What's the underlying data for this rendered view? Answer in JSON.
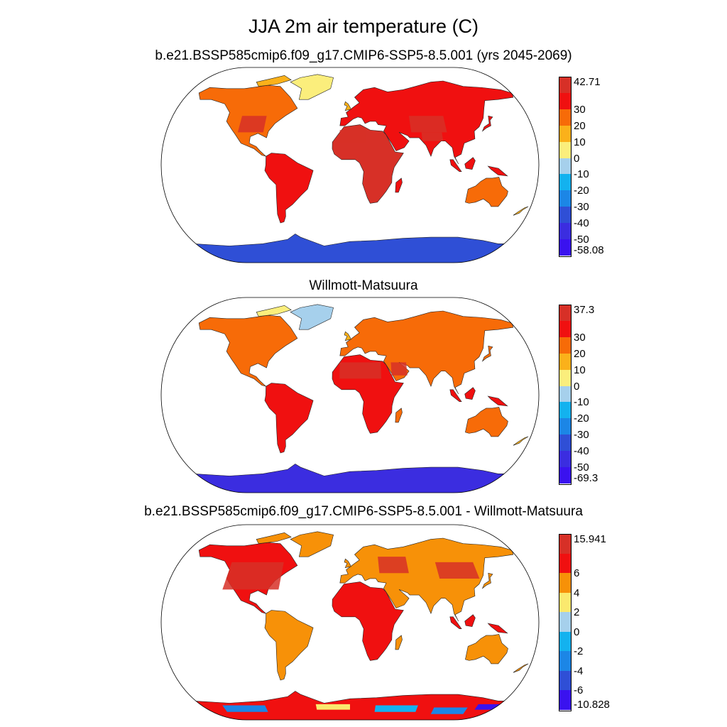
{
  "main_title": "JJA 2m air temperature (C)",
  "panels": [
    {
      "title": "b.e21.BSSP585cmip6.f09_g17.CMIP6-SSP5-8.5.001 (yrs 2045-2069)",
      "colorbar_labels": [
        "42.71",
        "30",
        "20",
        "10",
        "0",
        "-10",
        "-20",
        "-30",
        "-40",
        "-50",
        "-58.08"
      ],
      "colors": [
        "#d73027",
        "#f01010",
        "#f76b08",
        "#fbb11a",
        "#fbee7c",
        "#a6d0ec",
        "#13b2ef",
        "#1c86e6",
        "#2f4fd6",
        "#3b2de0",
        "#3a12ef"
      ]
    },
    {
      "title": "Willmott-Matsuura",
      "colorbar_labels": [
        "37.3",
        "30",
        "20",
        "10",
        "0",
        "-10",
        "-20",
        "-30",
        "-40",
        "-50",
        "-69.3"
      ],
      "colors": [
        "#d73027",
        "#f01010",
        "#f76b08",
        "#fbb11a",
        "#fbee7c",
        "#a6d0ec",
        "#13b2ef",
        "#1c86e6",
        "#2f4fd6",
        "#3b2de0",
        "#3a12ef"
      ]
    },
    {
      "title": "b.e21.BSSP585cmip6.f09_g17.CMIP6-SSP5-8.5.001 - Willmott-Matsuura",
      "colorbar_labels": [
        "15.941",
        "6",
        "4",
        "2",
        "0",
        "-2",
        "-4",
        "-6",
        "-10.828"
      ],
      "colors": [
        "#d73027",
        "#f01010",
        "#f79108",
        "#fbe96e",
        "#a6d0ec",
        "#13b2ef",
        "#1c86e6",
        "#2f4fd6",
        "#3a12ef"
      ]
    }
  ]
}
